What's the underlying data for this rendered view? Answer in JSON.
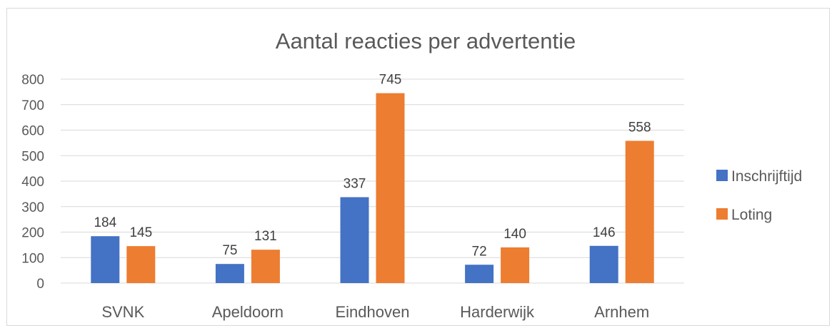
{
  "chart_data": {
    "type": "bar",
    "title": "Aantal reacties per advertentie",
    "xlabel": "",
    "ylabel": "",
    "categories": [
      "SVNK",
      "Apeldoorn",
      "Eindhoven",
      "Harderwijk",
      "Arnhem"
    ],
    "series": [
      {
        "name": "Inschrijftijd",
        "values": [
          184,
          75,
          337,
          72,
          146
        ],
        "color": "#4472c4"
      },
      {
        "name": "Loting",
        "values": [
          145,
          131,
          745,
          140,
          558
        ],
        "color": "#ed7d31"
      }
    ],
    "ylim": [
      0,
      800
    ],
    "yticks": [
      "0",
      "100",
      "200",
      "300",
      "400",
      "500",
      "600",
      "700",
      "800"
    ],
    "grid": true,
    "legend_position": "right",
    "data_labels": true
  }
}
